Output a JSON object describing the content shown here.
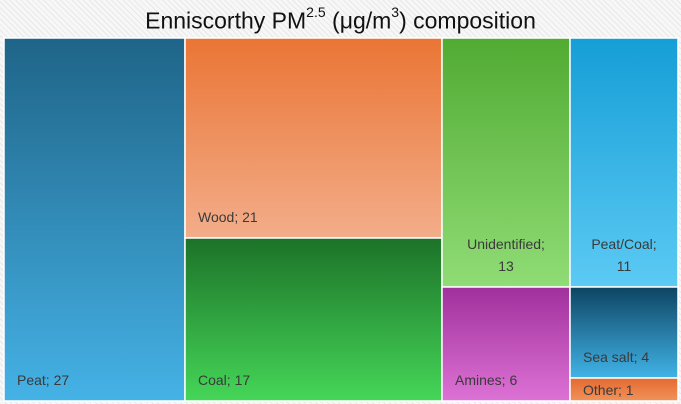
{
  "chart_data": {
    "type": "treemap",
    "title": {
      "prefix": "Enniscorthy PM",
      "pm_superscript": "2.5",
      "unit_open": " (μg/m",
      "unit_superscript": "3",
      "suffix": ") composition"
    },
    "items": [
      {
        "label": "Peat",
        "value": 27,
        "color_top": "#1f6488",
        "color_bottom": "#45b2e6"
      },
      {
        "label": "Wood",
        "value": 21,
        "color_top": "#ea7535",
        "color_bottom": "#f3ad8a"
      },
      {
        "label": "Coal",
        "value": 17,
        "color_top": "#1c7228",
        "color_bottom": "#45d658"
      },
      {
        "label": "Unidentified",
        "value": 13,
        "color_top": "#51ab32",
        "color_bottom": "#90dc76"
      },
      {
        "label": "Peat/Coal",
        "value": 11,
        "color_top": "#159ed6",
        "color_bottom": "#5ccaf4"
      },
      {
        "label": "Amines",
        "value": 6,
        "color_top": "#a0309c",
        "color_bottom": "#dd72d5"
      },
      {
        "label": "Sea salt",
        "value": 4,
        "color_top": "#0d4462",
        "color_bottom": "#41b3e7"
      },
      {
        "label": "Other",
        "value": 1,
        "color_top": "#e4692f",
        "color_bottom": "#f0935c"
      }
    ]
  }
}
